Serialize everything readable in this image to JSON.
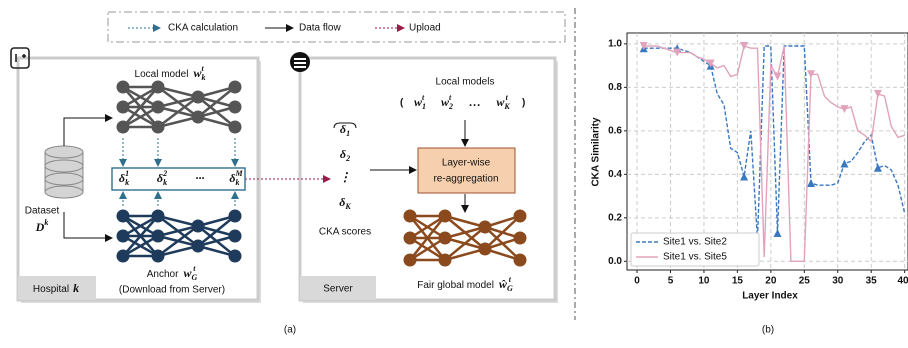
{
  "legend": [
    "CKA calculation",
    "Data flow",
    "Upload"
  ],
  "hospital": {
    "label": "Hospital",
    "label_math": {
      "base": "k"
    },
    "local_model": {
      "text": "Local model",
      "math": {
        "base": "w",
        "sub": "k",
        "sup": "t"
      }
    },
    "deltas": [
      {
        "base": "δ",
        "sub": "k",
        "sup": "1"
      },
      {
        "base": "δ",
        "sub": "k",
        "sup": "2"
      },
      "···",
      {
        "base": "δ",
        "sub": "k",
        "sup": "M"
      }
    ],
    "dataset": "Dataset",
    "dataset_math": {
      "base": "D",
      "sup": "k"
    },
    "anchor": {
      "text": "Anchor",
      "math": {
        "base": "w",
        "sub": "G",
        "sup": "t"
      }
    },
    "download": "(Download from Server)"
  },
  "server": {
    "label": "Server",
    "local_models": "Local models",
    "models_math": [
      {
        "base": "w",
        "sub": "1",
        "sup": "t"
      },
      {
        "base": "w",
        "sub": "2",
        "sup": "t"
      },
      "…",
      {
        "base": "w",
        "sub": "K",
        "sup": "t"
      }
    ],
    "cka_scores": [
      {
        "base": "δ",
        "sub": "1"
      },
      {
        "base": "δ",
        "sub": "2"
      },
      "⋮",
      {
        "base": "δ",
        "sub": "K"
      }
    ],
    "cka_label": "CKA scores",
    "aggregation": [
      "Layer-wise",
      "re-aggregation"
    ],
    "global": {
      "text": "Fair global model",
      "math": {
        "base": "ŵ",
        "sub": "G",
        "sup": "t"
      }
    }
  },
  "captions": [
    "(a)",
    "(b)"
  ],
  "chart_data": {
    "type": "line",
    "x_label": "Layer Index",
    "y_label": "CKA Similarity",
    "x": [
      1,
      2,
      3,
      4,
      5,
      6,
      7,
      8,
      9,
      10,
      11,
      12,
      13,
      14,
      15,
      16,
      17,
      18,
      19,
      20,
      21,
      22,
      23,
      24,
      25,
      26,
      27,
      28,
      29,
      30,
      31,
      32,
      33,
      34,
      35,
      36,
      37,
      38,
      39,
      40
    ],
    "series": [
      {
        "name": "Site1 vs. Site2",
        "color": "#3a78c2",
        "dash": true,
        "marker": "^",
        "markevery": 5,
        "values": [
          0.98,
          0.98,
          0.98,
          0.98,
          0.98,
          0.98,
          0.97,
          0.96,
          0.94,
          0.92,
          0.9,
          0.77,
          0.72,
          0.52,
          0.5,
          0.39,
          0.6,
          0.1,
          0.99,
          0.99,
          0.13,
          0.99,
          0.99,
          0.99,
          0.99,
          0.36,
          0.35,
          0.35,
          0.35,
          0.36,
          0.45,
          0.46,
          0.5,
          0.55,
          0.58,
          0.43,
          0.44,
          0.42,
          0.35,
          0.22
        ]
      },
      {
        "name": "Site1 vs. Site5",
        "color": "#e0a3bb",
        "dash": false,
        "marker": "v",
        "markevery": 5,
        "values": [
          0.99,
          0.99,
          0.99,
          0.98,
          0.97,
          0.96,
          0.96,
          0.96,
          0.94,
          0.93,
          0.91,
          0.89,
          0.9,
          0.85,
          0.86,
          0.99,
          0.98,
          0.98,
          0.02,
          0.9,
          0.85,
          0.99,
          0.0,
          0.0,
          0.0,
          0.86,
          0.86,
          0.76,
          0.73,
          0.71,
          0.7,
          0.71,
          0.6,
          0.58,
          0.55,
          0.77,
          0.76,
          0.62,
          0.57,
          0.58
        ]
      }
    ],
    "xlim": [
      -1.5,
      40.5
    ],
    "ylim": [
      -0.04,
      1.05
    ],
    "xticks": [
      0,
      5,
      10,
      15,
      20,
      25,
      30,
      35,
      40
    ],
    "yticks": [
      {
        "value": 0,
        "label": "0.0"
      },
      {
        "value": 0.2,
        "label": "0.2"
      },
      {
        "value": 0.4,
        "label": "0.4"
      },
      {
        "value": 0.6,
        "label": "0.6"
      },
      {
        "value": 0.8,
        "label": "0.8"
      },
      {
        "value": 1,
        "label": "1.0"
      }
    ],
    "grid": true,
    "legend_loc": "lower left"
  }
}
